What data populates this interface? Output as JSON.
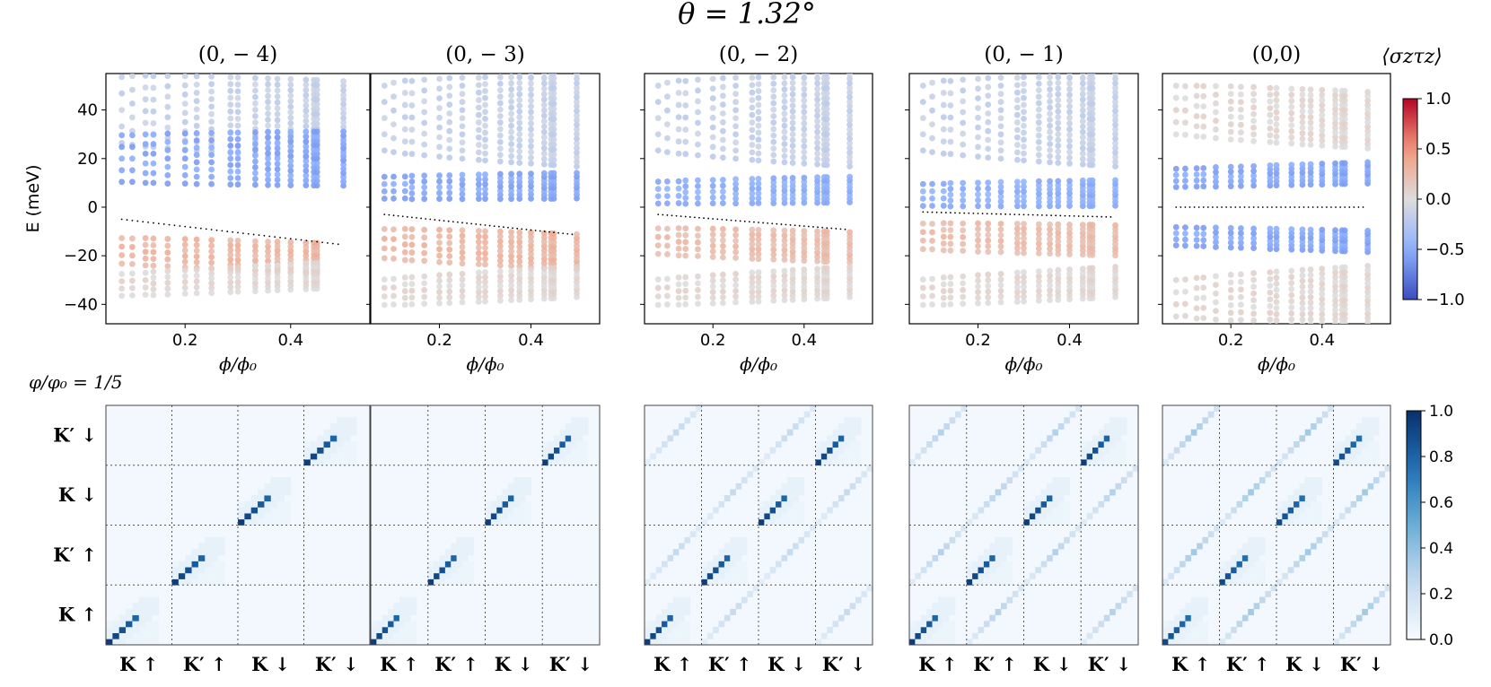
{
  "figure": {
    "title": "θ = 1.32°",
    "panel_label": "φ/φ₀ = 1/5"
  },
  "chart_data": [
    {
      "type": "scatter",
      "role": "hofstadter-spectrum",
      "panels": [
        "(0, − 4)",
        "(0, − 3)",
        "(0, − 2)",
        "(0, − 1)",
        "(0,0)"
      ],
      "xlabel": "ϕ/ϕ₀",
      "ylabel": "E (meV)",
      "xlim": [
        0.05,
        0.55
      ],
      "ylim": [
        -48,
        55
      ],
      "xticks": [
        0.2,
        0.4
      ],
      "xtick_labels": [
        "0.2",
        "0.4"
      ],
      "yticks": [
        40,
        20,
        0,
        -20,
        -40
      ],
      "ytick_labels": [
        "40",
        "20",
        "0",
        "−20",
        "−40"
      ],
      "color_quantity": "⟨σzτz⟩",
      "color_range": [
        -1.0,
        1.0
      ],
      "colorbar_ticks": [
        1.0,
        0.5,
        0.0,
        -0.5,
        -1.0
      ],
      "colorbar_tick_labels": [
        "1.0",
        "0.5",
        "0.0",
        "−0.5",
        "−1.0"
      ],
      "phi_values": [
        0.08,
        0.1,
        0.125,
        0.14,
        0.167,
        0.2,
        0.222,
        0.25,
        0.286,
        0.3,
        0.333,
        0.357,
        0.375,
        0.4,
        0.429,
        0.444,
        0.45,
        0.5
      ],
      "series": [
        {
          "name": "(0, − 4)",
          "flat_level": -5,
          "flat_slope": -25,
          "bands": [
            {
              "e0": 40,
              "slope": -10,
              "width": 34,
              "value": -0.15,
              "x_end": 0.5
            },
            {
              "e0": 20,
              "slope": 0,
              "width": 24,
              "value": -0.55,
              "x_end": 0.5
            },
            {
              "e0": -18,
              "slope": -8,
              "width": 14,
              "value": 0.3,
              "x_end": 0.46
            },
            {
              "e0": -32,
              "slope": 10,
              "width": 12,
              "value": 0.05,
              "x_end": 0.46
            }
          ]
        },
        {
          "name": "(0, − 3)",
          "flat_level": -3,
          "flat_slope": -20,
          "bands": [
            {
              "e0": 40,
              "slope": -10,
              "width": 40,
              "value": -0.15,
              "x_end": 0.5
            },
            {
              "e0": 8,
              "slope": 2,
              "width": 12,
              "value": -0.55,
              "x_end": 0.5
            },
            {
              "e0": -15,
              "slope": -8,
              "width": 16,
              "value": 0.3,
              "x_end": 0.5
            },
            {
              "e0": -35,
              "slope": 10,
              "width": 14,
              "value": 0.05,
              "x_end": 0.5
            }
          ]
        },
        {
          "name": "(0, − 2)",
          "flat_level": -3,
          "flat_slope": -15,
          "bands": [
            {
              "e0": 40,
              "slope": -10,
              "width": 40,
              "value": -0.15,
              "x_end": 0.5
            },
            {
              "e0": 6,
              "slope": 3,
              "width": 12,
              "value": -0.5,
              "x_end": 0.5
            },
            {
              "e0": -14,
              "slope": -6,
              "width": 14,
              "value": 0.25,
              "x_end": 0.5
            },
            {
              "e0": -35,
              "slope": 10,
              "width": 14,
              "value": 0.05,
              "x_end": 0.5
            }
          ]
        },
        {
          "name": "(0, − 1)",
          "flat_level": -2,
          "flat_slope": -5,
          "bands": [
            {
              "e0": 40,
              "slope": -10,
              "width": 40,
              "value": -0.15,
              "x_end": 0.5
            },
            {
              "e0": 5,
              "slope": 2,
              "width": 12,
              "value": -0.5,
              "x_end": 0.5
            },
            {
              "e0": -12,
              "slope": -4,
              "width": 14,
              "value": 0.25,
              "x_end": 0.5
            },
            {
              "e0": -35,
              "slope": 10,
              "width": 14,
              "value": 0.05,
              "x_end": 0.5
            }
          ]
        },
        {
          "name": "(0,0)",
          "flat_level": 0,
          "flat_slope": 0,
          "bands": [
            {
              "e0": 40,
              "slope": -10,
              "width": 25,
              "value": 0.05,
              "x_end": 0.5
            },
            {
              "e0": 12,
              "slope": 5,
              "width": 10,
              "value": -0.55,
              "x_end": 0.5
            },
            {
              "e0": -12,
              "slope": -5,
              "width": 10,
              "value": -0.55,
              "x_end": 0.5
            },
            {
              "e0": -40,
              "slope": 10,
              "width": 25,
              "value": 0.05,
              "x_end": 0.5
            }
          ]
        }
      ]
    },
    {
      "type": "heatmap",
      "role": "valley-spin-overlap",
      "axis_labels": [
        "K ↑",
        "K′ ↑",
        "K ↓",
        "K′ ↓"
      ],
      "y_axis_labels": [
        "K′ ↓",
        "K ↓",
        "K′ ↑",
        "K ↑"
      ],
      "block_size": 10,
      "color_range": [
        0.0,
        1.0
      ],
      "colorbar_ticks": [
        1.0,
        0.8,
        0.6,
        0.4,
        0.2,
        0.0
      ],
      "colorbar_tick_labels": [
        "1.0",
        "0.8",
        "0.6",
        "0.4",
        "0.2",
        "0.0"
      ],
      "series": [
        {
          "name": "(0, − 4)",
          "diagonal_value": 0.95,
          "coupling_value": 0.0
        },
        {
          "name": "(0, − 3)",
          "diagonal_value": 0.95,
          "coupling_value": 0.0
        },
        {
          "name": "(0, − 2)",
          "diagonal_value": 0.95,
          "coupling_value": 0.25
        },
        {
          "name": "(0, − 1)",
          "diagonal_value": 0.95,
          "coupling_value": 0.3
        },
        {
          "name": "(0,0)",
          "diagonal_value": 0.9,
          "coupling_value": 0.35
        }
      ]
    }
  ]
}
